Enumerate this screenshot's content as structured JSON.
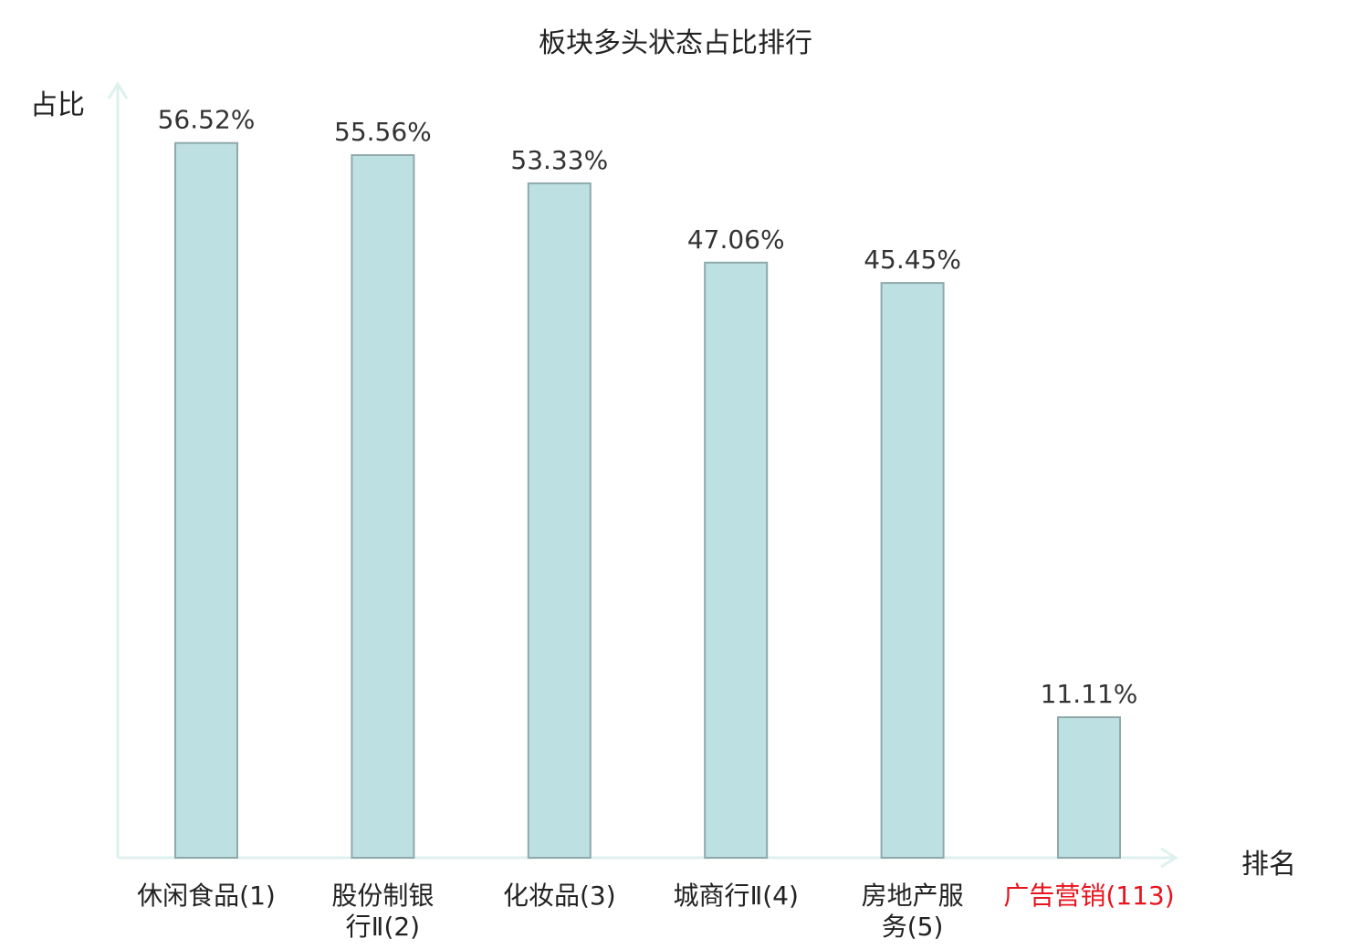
{
  "chart_data": {
    "type": "bar",
    "title": "板块多头状态占比排行",
    "ylabel": "占比",
    "xlabel": "排名",
    "ylim": [
      0,
      63.5
    ],
    "grid": false,
    "categories": [
      "休闲食品(1)",
      "股份制银行Ⅱ(2)",
      "化妆品(3)",
      "城商行Ⅱ(4)",
      "房地产服务(5)",
      "广告营销(113)"
    ],
    "values": [
      56.52,
      55.56,
      53.33,
      47.06,
      45.45,
      11.11
    ],
    "value_labels": [
      "56.52%",
      "55.56%",
      "53.33%",
      "47.06%",
      "45.45%",
      "11.11%"
    ],
    "highlight_category": "广告营销(113)",
    "colors": {
      "bar_fill": "#bde0e3",
      "bar_stroke": "#8fa9ab",
      "axis": "#dff1ee",
      "highlight_text": "#e8141e"
    }
  }
}
